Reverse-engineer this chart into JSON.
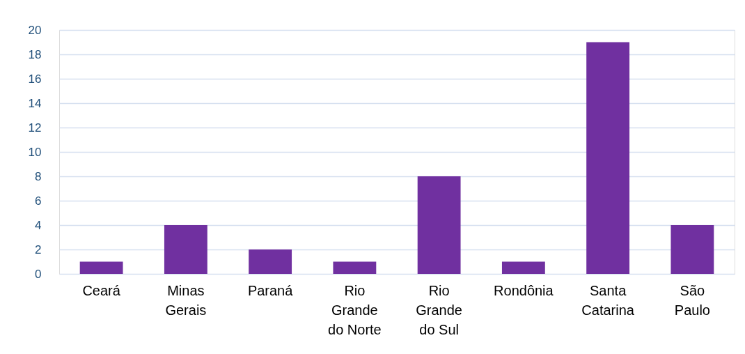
{
  "chart_data": {
    "type": "bar",
    "categories": [
      "Ceará",
      "Minas Gerais",
      "Paraná",
      "Rio Grande do Norte",
      "Rio Grande do Sul",
      "Rondônia",
      "Santa Catarina",
      "São Paulo"
    ],
    "values": [
      1,
      4,
      2,
      1,
      8,
      1,
      19,
      4
    ],
    "color": "#7030a0",
    "ylim": [
      0,
      20
    ],
    "yticks": [
      0,
      2,
      4,
      6,
      8,
      10,
      12,
      14,
      16,
      18,
      20
    ],
    "grid": "y"
  }
}
